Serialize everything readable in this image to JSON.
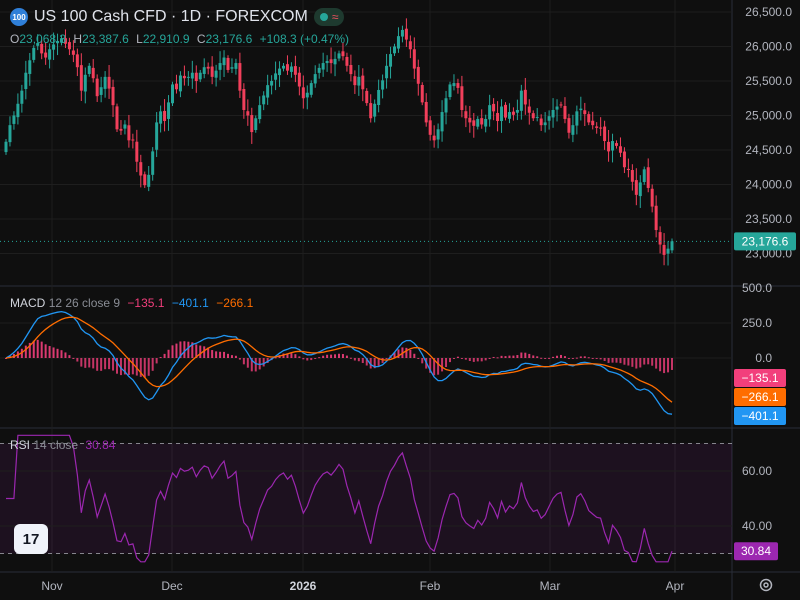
{
  "header": {
    "symbol_icon": "100",
    "title": "US 100 Cash CFD · 1D · FOREXCOM",
    "status_icon": "market-open-dot-icon",
    "wave_icon": "≈"
  },
  "ohlc": {
    "o_label": "O",
    "o_value": "23,068.3",
    "h_label": "H",
    "h_value": "23,387.6",
    "l_label": "L",
    "l_value": "22,910.9",
    "c_label": "C",
    "c_value": "23,176.6",
    "change": "+108.3 (+0.47%)"
  },
  "macd": {
    "name": "MACD",
    "params": "12 26 close 9",
    "hist": "−135.1",
    "macd": "−401.1",
    "signal": "−266.1",
    "colors": {
      "hist": "#f23f7c",
      "macd": "#2196f3",
      "signal": "#ff6d00"
    }
  },
  "rsi": {
    "name": "RSI",
    "params": "14 close",
    "value": "30.84",
    "color": "#9c27b0"
  },
  "price_axis": {
    "ticks": [
      "26,500.0",
      "26,000.0",
      "25,500.0",
      "25,000.0",
      "24,500.0",
      "24,000.0",
      "23,500.0",
      "23,000.0"
    ],
    "last": "23,176.6"
  },
  "macd_axis": {
    "ticks": [
      "500.0",
      "250.0",
      "0.0"
    ]
  },
  "rsi_axis": {
    "ticks": [
      "60.00",
      "40.00"
    ]
  },
  "time_axis": {
    "ticks": [
      "Nov",
      "Dec",
      "2026",
      "Feb",
      "Mar",
      "Apr"
    ]
  },
  "colors": {
    "up": "#26a69a",
    "down": "#f23f5b",
    "bg": "#0f0f0f",
    "grid": "#1e1e1e"
  },
  "chart_data": {
    "type": "candlestick",
    "symbol": "US 100 Cash CFD",
    "interval": "1D",
    "x_ticks": [
      "Nov",
      "Dec",
      "2026",
      "Feb",
      "Mar",
      "Apr"
    ],
    "ylim": [
      22800,
      26600
    ],
    "close": [
      24620,
      24860,
      25000,
      25170,
      25360,
      25620,
      25800,
      25980,
      26050,
      25900,
      25840,
      25960,
      26030,
      26080,
      26120,
      26040,
      25960,
      25880,
      25700,
      25360,
      25590,
      25720,
      25540,
      25280,
      25410,
      25560,
      25390,
      25150,
      24800,
      24780,
      24870,
      24640,
      24650,
      24330,
      24130,
      23990,
      24140,
      24480,
      24900,
      25060,
      24920,
      25190,
      25450,
      25380,
      25580,
      25540,
      25560,
      25620,
      25500,
      25620,
      25700,
      25680,
      25560,
      25650,
      25760,
      25840,
      25660,
      25700,
      25760,
      25360,
      25080,
      25000,
      24760,
      24960,
      25150,
      25290,
      25440,
      25500,
      25610,
      25680,
      25720,
      25650,
      25710,
      25590,
      25420,
      25250,
      25330,
      25470,
      25600,
      25690,
      25760,
      25790,
      25760,
      25820,
      25900,
      25860,
      25720,
      25600,
      25440,
      25560,
      25380,
      25180,
      24960,
      25170,
      25370,
      25510,
      25720,
      25890,
      26000,
      26150,
      26240,
      26100,
      25960,
      25680,
      25460,
      25190,
      24900,
      24720,
      24640,
      24800,
      25050,
      25250,
      25450,
      25470,
      25400,
      25080,
      24960,
      24900,
      24850,
      24950,
      24870,
      24950,
      25150,
      25060,
      24920,
      25130,
      24970,
      25050,
      25010,
      25080,
      25360,
      25160,
      25040,
      24960,
      24980,
      24860,
      24900,
      24990,
      25080,
      25130,
      25150,
      24950,
      24750,
      24860,
      25060,
      25100,
      25020,
      24900,
      24860,
      24820,
      24810,
      24630,
      24480,
      24630,
      24560,
      24460,
      24250,
      24210,
      24040,
      23850,
      24030,
      24220,
      23950,
      23680,
      23340,
      23130,
      22980,
      23070,
      23176.6
    ],
    "macd_range": [
      -480,
      500
    ],
    "rsi_range": [
      27,
      73
    ],
    "rsi_levels": [
      70,
      30
    ],
    "last_values": {
      "close": 23176.6,
      "macd_hist": -135.1,
      "macd": -401.1,
      "macd_signal": -266.1,
      "rsi": 30.84
    }
  }
}
